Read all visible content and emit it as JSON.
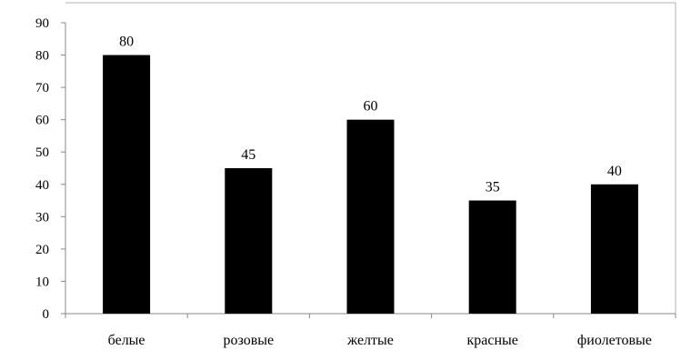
{
  "chart_data": {
    "type": "bar",
    "categories": [
      "белые",
      "розовые",
      "желтые",
      "красные",
      "фиолетовые"
    ],
    "values": [
      80,
      45,
      60,
      35,
      40
    ],
    "data_labels": [
      "80",
      "45",
      "60",
      "35",
      "40"
    ],
    "title": "",
    "xlabel": "",
    "ylabel": "",
    "ylim": [
      0,
      90
    ],
    "yticks": [
      "0",
      "10",
      "20",
      "30",
      "40",
      "50",
      "60",
      "70",
      "80",
      "90"
    ],
    "grid": false,
    "legend": "none",
    "bar_color": "#000000",
    "axis_color": "#888888"
  }
}
